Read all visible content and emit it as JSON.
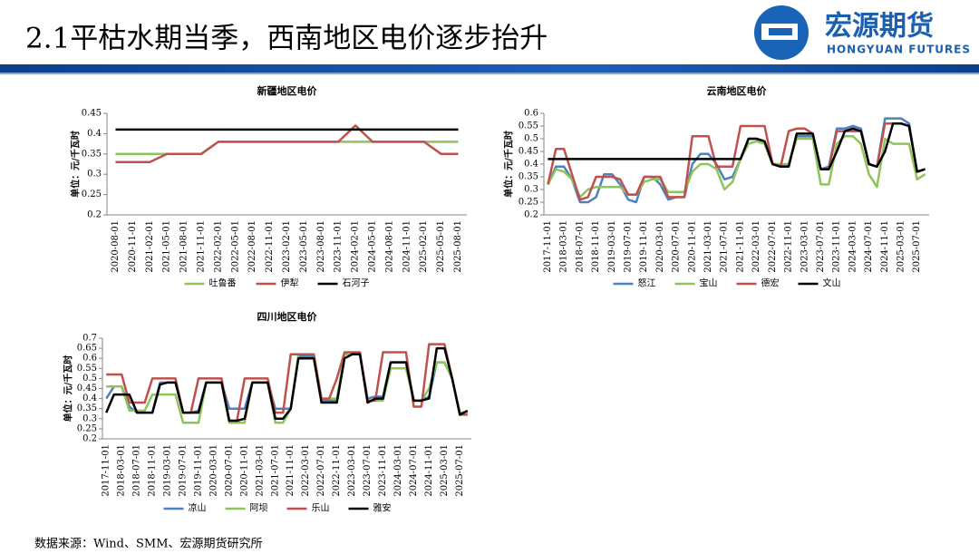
{
  "header": {
    "title": "2.1平枯水期当季，西南地区电价逐步抬升",
    "logo_cn": "宏源期货",
    "logo_en": "HONGYUAN FUTURES"
  },
  "footer": {
    "source": "数据来源：Wind、SMM、宏源期货研究所"
  },
  "chart_data": [
    {
      "type": "line",
      "title": "新疆地区电价",
      "ylabel": "单位：元/千瓦时",
      "categories": [
        "2020-08-01",
        "2020-11-01",
        "2021-02-01",
        "2021-05-01",
        "2021-08-01",
        "2021-11-01",
        "2022-02-01",
        "2022-05-01",
        "2022-08-01",
        "2022-11-01",
        "2023-02-01",
        "2023-05-01",
        "2023-08-01",
        "2023-11-01",
        "2024-02-01",
        "2024-05-01",
        "2024-08-01",
        "2024-11-01",
        "2025-02-01",
        "2025-05-01",
        "2025-08-01"
      ],
      "ylim": [
        0.2,
        0.45
      ],
      "yticks": [
        0.2,
        0.25,
        0.3,
        0.35,
        0.4,
        0.45
      ],
      "series": [
        {
          "name": "吐鲁番",
          "color": "#8fc45a",
          "values": [
            0.35,
            0.35,
            0.35,
            0.35,
            0.35,
            0.35,
            0.38,
            0.38,
            0.38,
            0.38,
            0.38,
            0.38,
            0.38,
            0.38,
            0.38,
            0.38,
            0.38,
            0.38,
            0.38,
            0.38,
            0.38
          ]
        },
        {
          "name": "伊犁",
          "color": "#c0504d",
          "values": [
            0.33,
            0.33,
            0.33,
            0.35,
            0.35,
            0.35,
            0.38,
            0.38,
            0.38,
            0.38,
            0.38,
            0.38,
            0.38,
            0.38,
            0.42,
            0.38,
            0.38,
            0.38,
            0.38,
            0.35,
            0.35
          ]
        },
        {
          "name": "石河子",
          "color": "#000000",
          "values": [
            0.41,
            0.41,
            0.41,
            0.41,
            0.41,
            0.41,
            0.41,
            0.41,
            0.41,
            0.41,
            0.41,
            0.41,
            0.41,
            0.41,
            0.41,
            0.41,
            0.41,
            0.41,
            0.41,
            0.41,
            0.41
          ]
        }
      ]
    },
    {
      "type": "line",
      "title": "云南地区电价",
      "ylabel": "单位：元/千瓦时",
      "categories": [
        "2017-11-01",
        null,
        "2018-03-01",
        null,
        "2018-07-01",
        null,
        "2018-11-01",
        null,
        "2019-03-01",
        null,
        "2019-07-01",
        null,
        "2019-11-01",
        null,
        "2020-03-01",
        null,
        "2020-07-01",
        null,
        "2020-11-01",
        null,
        "2021-03-01",
        null,
        "2021-07-01",
        null,
        "2021-11-01",
        null,
        "2022-03-01",
        null,
        "2022-07-01",
        null,
        "2022-11-01",
        null,
        "2023-03-01",
        null,
        "2023-07-01",
        null,
        "2023-11-01",
        null,
        "2024-03-01",
        null,
        "2024-07-01",
        null,
        "2024-11-01",
        null,
        "2025-03-01",
        null,
        "2025-07-01",
        null
      ],
      "ylim": [
        0.2,
        0.6
      ],
      "yticks": [
        0.2,
        0.25,
        0.3,
        0.35,
        0.4,
        0.45,
        0.5,
        0.55,
        0.6
      ],
      "series": [
        {
          "name": "怒江",
          "color": "#4f81bd",
          "values": [
            0.32,
            0.39,
            0.39,
            0.34,
            0.25,
            0.25,
            0.27,
            0.36,
            0.36,
            0.32,
            0.26,
            0.25,
            0.35,
            0.35,
            0.32,
            0.26,
            0.27,
            0.27,
            0.4,
            0.44,
            0.44,
            0.4,
            0.34,
            0.35,
            0.42,
            0.5,
            0.5,
            0.48,
            0.4,
            0.39,
            0.4,
            0.51,
            0.51,
            0.51,
            0.38,
            0.39,
            0.54,
            0.54,
            0.55,
            0.54,
            0.4,
            0.39,
            0.58,
            0.58,
            0.58,
            0.56,
            0.37,
            0.38
          ]
        },
        {
          "name": "宝山",
          "color": "#8fc45a",
          "values": [
            0.32,
            0.38,
            0.37,
            0.34,
            0.27,
            0.3,
            0.31,
            0.31,
            0.31,
            0.31,
            0.28,
            0.28,
            0.33,
            0.34,
            0.34,
            0.29,
            0.29,
            0.29,
            0.37,
            0.4,
            0.4,
            0.38,
            0.3,
            0.33,
            0.42,
            0.48,
            0.49,
            0.48,
            0.4,
            0.4,
            0.4,
            0.5,
            0.5,
            0.5,
            0.32,
            0.32,
            0.48,
            0.51,
            0.51,
            0.48,
            0.36,
            0.31,
            0.5,
            0.48,
            0.48,
            0.48,
            0.34,
            0.36
          ]
        },
        {
          "name": "德宏",
          "color": "#c0504d",
          "values": [
            0.32,
            0.46,
            0.46,
            0.36,
            0.26,
            0.27,
            0.35,
            0.35,
            0.35,
            0.34,
            0.28,
            0.28,
            0.35,
            0.35,
            0.35,
            0.27,
            0.27,
            0.27,
            0.51,
            0.51,
            0.51,
            0.39,
            0.39,
            0.39,
            0.55,
            0.55,
            0.55,
            0.55,
            0.4,
            0.39,
            0.53,
            0.54,
            0.54,
            0.52,
            0.38,
            0.38,
            0.53,
            0.53,
            0.53,
            0.53,
            0.4,
            0.39,
            0.56,
            0.56,
            0.56,
            0.55,
            0.37,
            0.38
          ]
        },
        {
          "name": "文山",
          "color": "#000000",
          "values": [
            0.42,
            0.42,
            0.42,
            0.42,
            0.42,
            0.42,
            0.42,
            0.42,
            0.42,
            0.42,
            0.42,
            0.42,
            0.42,
            0.42,
            0.42,
            0.42,
            0.42,
            0.42,
            0.42,
            0.42,
            0.42,
            0.42,
            0.42,
            0.42,
            0.42,
            0.5,
            0.5,
            0.49,
            0.4,
            0.39,
            0.39,
            0.52,
            0.52,
            0.52,
            0.38,
            0.38,
            0.45,
            0.53,
            0.54,
            0.53,
            0.4,
            0.39,
            0.45,
            0.56,
            0.56,
            0.55,
            0.37,
            0.38
          ]
        }
      ]
    },
    {
      "type": "line",
      "title": "四川地区电价",
      "ylabel": "单位：元/千瓦时",
      "categories": [
        "2017-11-01",
        null,
        "2018-03-01",
        null,
        "2018-07-01",
        null,
        "2018-11-01",
        null,
        "2019-03-01",
        null,
        "2019-07-01",
        null,
        "2019-11-01",
        null,
        "2020-03-01",
        null,
        "2020-07-01",
        null,
        "2020-11-01",
        null,
        "2021-03-01",
        null,
        "2021-07-01",
        null,
        "2021-11-01",
        null,
        "2022-03-01",
        null,
        "2022-07-01",
        null,
        "2022-11-01",
        null,
        "2023-03-01",
        null,
        "2023-07-01",
        null,
        "2023-11-01",
        null,
        "2024-03-01",
        null,
        "2024-07-01",
        null,
        "2024-11-01",
        null,
        "2025-03-01",
        null,
        "2025-07-01",
        null
      ],
      "ylim": [
        0.2,
        0.7
      ],
      "yticks": [
        0.2,
        0.25,
        0.3,
        0.35,
        0.4,
        0.45,
        0.5,
        0.55,
        0.6,
        0.65,
        0.7
      ],
      "series": [
        {
          "name": "凉山",
          "color": "#4f81bd",
          "values": [
            0.4,
            0.46,
            0.46,
            0.36,
            0.33,
            0.33,
            0.33,
            0.48,
            0.48,
            0.48,
            0.33,
            0.33,
            0.34,
            0.48,
            0.48,
            0.48,
            0.35,
            0.35,
            0.35,
            0.48,
            0.48,
            0.48,
            0.35,
            0.35,
            0.35,
            0.61,
            0.61,
            0.61,
            0.39,
            0.39,
            0.39,
            0.62,
            0.62,
            0.62,
            0.4,
            0.41,
            0.41,
            0.58,
            0.58,
            0.58,
            0.39,
            0.39,
            0.41,
            0.58,
            0.58,
            0.5,
            0.33,
            0.33
          ]
        },
        {
          "name": "阿坝",
          "color": "#8fc45a",
          "values": [
            0.46,
            0.46,
            0.46,
            0.34,
            0.34,
            0.34,
            0.42,
            0.42,
            0.42,
            0.42,
            0.28,
            0.28,
            0.28,
            0.48,
            0.48,
            0.48,
            0.28,
            0.28,
            0.28,
            0.48,
            0.48,
            0.48,
            0.28,
            0.28,
            0.35,
            0.62,
            0.62,
            0.62,
            0.4,
            0.4,
            0.4,
            0.62,
            0.62,
            0.62,
            0.39,
            0.39,
            0.39,
            0.55,
            0.55,
            0.55,
            0.39,
            0.39,
            0.45,
            0.58,
            0.58,
            0.5,
            0.33,
            0.33
          ]
        },
        {
          "name": "乐山",
          "color": "#c0504d",
          "values": [
            0.52,
            0.52,
            0.52,
            0.38,
            0.38,
            0.38,
            0.5,
            0.5,
            0.5,
            0.5,
            0.33,
            0.33,
            0.5,
            0.5,
            0.5,
            0.5,
            0.29,
            0.29,
            0.5,
            0.5,
            0.5,
            0.5,
            0.33,
            0.33,
            0.62,
            0.62,
            0.62,
            0.62,
            0.4,
            0.4,
            0.5,
            0.63,
            0.63,
            0.63,
            0.39,
            0.39,
            0.63,
            0.63,
            0.63,
            0.63,
            0.36,
            0.36,
            0.67,
            0.67,
            0.67,
            0.5,
            0.32,
            0.32
          ]
        },
        {
          "name": "雅安",
          "color": "#000000",
          "values": [
            0.33,
            0.42,
            0.42,
            0.42,
            0.33,
            0.33,
            0.33,
            0.47,
            0.48,
            0.48,
            0.33,
            0.33,
            0.33,
            0.48,
            0.48,
            0.48,
            0.29,
            0.29,
            0.3,
            0.48,
            0.48,
            0.48,
            0.3,
            0.3,
            0.35,
            0.6,
            0.6,
            0.6,
            0.38,
            0.38,
            0.38,
            0.6,
            0.62,
            0.62,
            0.38,
            0.4,
            0.4,
            0.58,
            0.58,
            0.58,
            0.39,
            0.39,
            0.4,
            0.65,
            0.65,
            0.5,
            0.32,
            0.34
          ]
        }
      ]
    }
  ]
}
